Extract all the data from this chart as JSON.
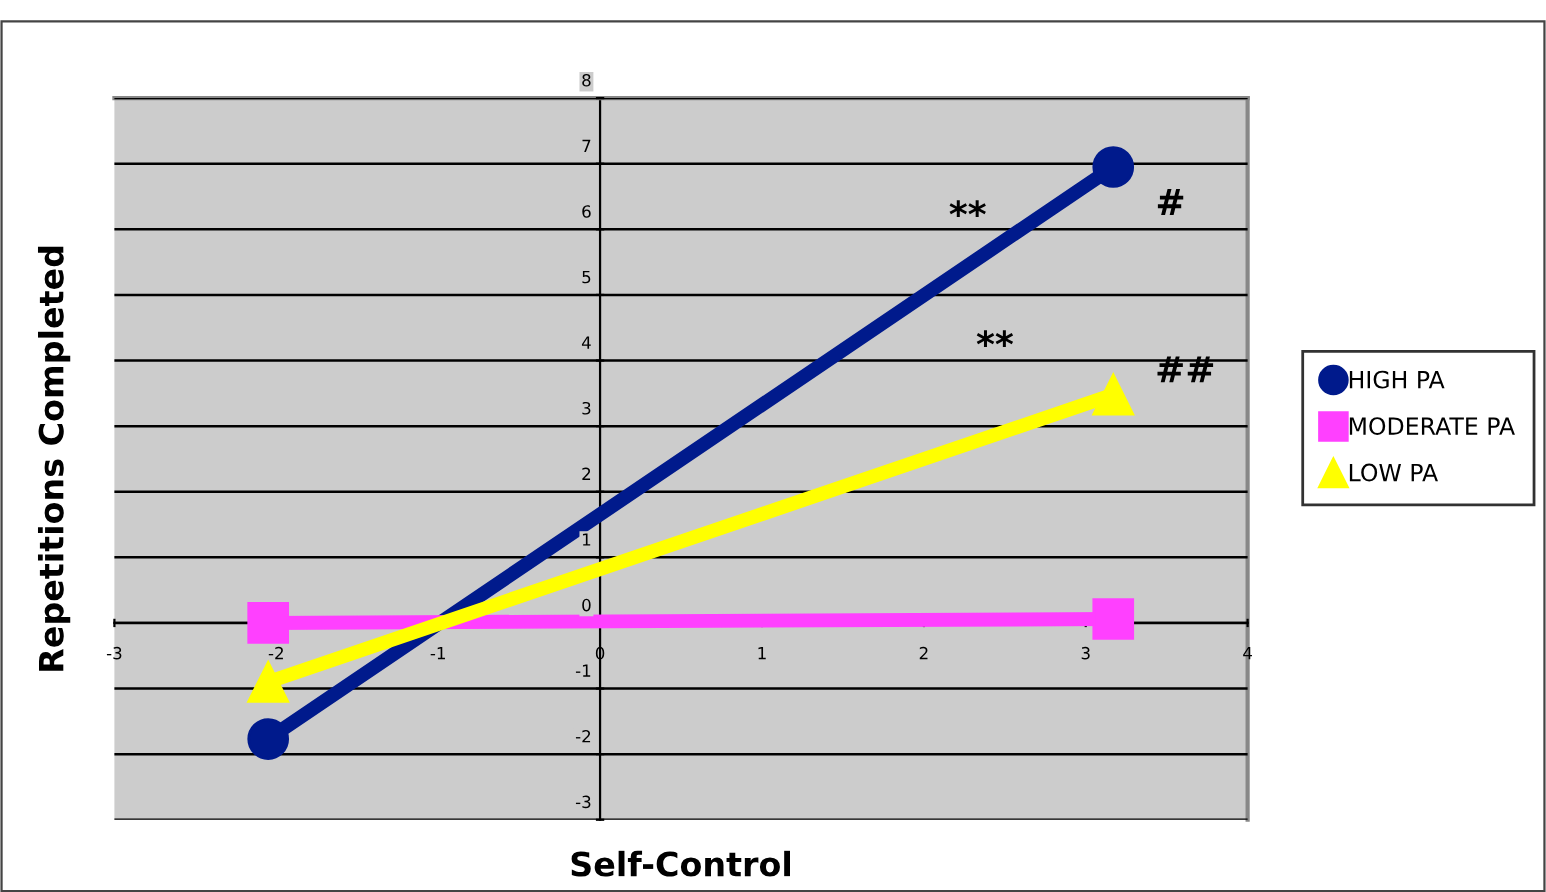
{
  "chart_data": {
    "type": "line",
    "xlabel": "Self-Control",
    "ylabel": "Repetitions Completed",
    "series": [
      {
        "name": "HIGH PA",
        "color": "#001a8c",
        "marker": "circle",
        "values": [
          -1.77,
          6.95
        ]
      },
      {
        "name": "MODERATE PA",
        "color": "#ff40ff",
        "marker": "square",
        "values": [
          0.0,
          0.06
        ]
      },
      {
        "name": "LOW PA",
        "color": "#ffff00",
        "marker": "triangle",
        "values": [
          -0.9,
          3.48
        ]
      }
    ],
    "x": [
      -2.05,
      3.17
    ],
    "xlim": [
      -3,
      4
    ],
    "xticks": [
      -3,
      -2,
      -1,
      0,
      1,
      2,
      3,
      4
    ],
    "ylim": [
      -3,
      8
    ],
    "yticks": [
      -3,
      -2,
      -1,
      0,
      1,
      2,
      3,
      4,
      5,
      6,
      7,
      8
    ],
    "grid": "y",
    "legend": "right",
    "line_style": "solid",
    "annotations": [
      "**",
      "#",
      "**",
      "##"
    ]
  }
}
